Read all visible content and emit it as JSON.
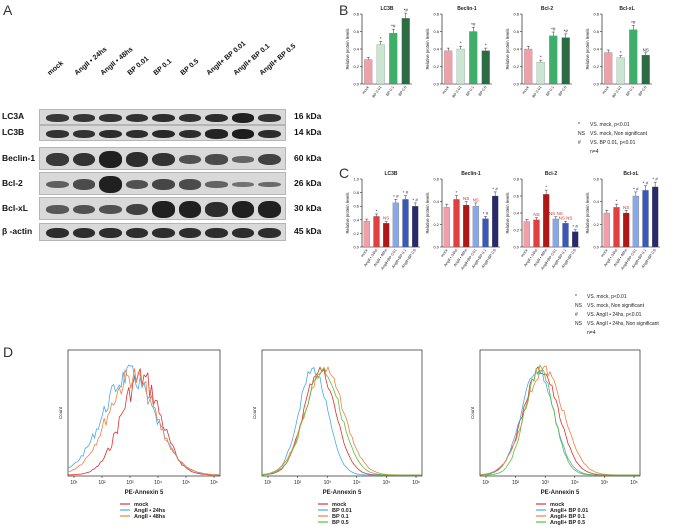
{
  "panel_a": {
    "letter": "A",
    "lanes": [
      "mock",
      "AngII • 24hs",
      "AngII • 48hs",
      "BP 0.01",
      "BP 0.1",
      "BP 0.5",
      "AngII+ BP 0.01",
      "AngII+ BP 0.1",
      "AngII+ BP 0.5"
    ],
    "rows": [
      {
        "label": "LC3A",
        "kda": "16 kDa",
        "intensity": [
          0.75,
          0.78,
          0.8,
          0.82,
          0.84,
          0.82,
          0.86,
          0.95,
          0.8
        ]
      },
      {
        "label": "LC3B",
        "kda": "14 kDa",
        "intensity": [
          0.8,
          0.8,
          0.86,
          0.84,
          0.88,
          0.85,
          0.92,
          0.98,
          0.85
        ]
      },
      {
        "label": "Beclin-1",
        "kda": "60 kDa",
        "intensity": [
          0.75,
          0.82,
          0.95,
          0.85,
          0.8,
          0.55,
          0.6,
          0.4,
          0.7
        ]
      },
      {
        "label": "Bcl-2",
        "kda": "26 kDa",
        "intensity": [
          0.45,
          0.6,
          0.95,
          0.55,
          0.65,
          0.6,
          0.4,
          0.3,
          0.35
        ]
      },
      {
        "label": "Bcl-xL",
        "kda": "30 kDa",
        "intensity": [
          0.5,
          0.55,
          0.55,
          0.7,
          0.95,
          0.95,
          0.85,
          0.95,
          0.95
        ]
      },
      {
        "label": "β -actin",
        "kda": "45 kDa",
        "intensity": [
          0.85,
          0.85,
          0.85,
          0.85,
          0.85,
          0.85,
          0.85,
          0.85,
          0.85
        ]
      }
    ]
  },
  "panel_b": {
    "letter": "B",
    "ylabel": "Relative protein levels",
    "legend": [
      {
        "sym": "*",
        "text": "VS. mock, p<0.01"
      },
      {
        "sym": "NS",
        "text": "VS. mock, Non significant"
      },
      {
        "sym": "#",
        "text": "VS. BP 0.01, p<0.01"
      },
      {
        "sym": "",
        "text": "n=4"
      }
    ]
  },
  "panel_c": {
    "letter": "C",
    "ylabel": "Relative protein levels",
    "legend": [
      {
        "sym": "*",
        "text": "VS. mock, p<0.01"
      },
      {
        "sym": "NS",
        "text": "VS. mock, Non significant"
      },
      {
        "sym": "#",
        "text": "VS. AngII • 24hs, p<0.01"
      },
      {
        "sym": "NS",
        "text": "VS. AngII • 24hs, Non significant"
      },
      {
        "sym": "",
        "text": "n=4"
      }
    ]
  },
  "panel_d": {
    "letter": "D",
    "xlabel": "PE-Annexin 5",
    "ylabel": "Count"
  },
  "chart_data": [
    {
      "type": "bar",
      "title": "LC3B",
      "categories": [
        "mock",
        "BP 0.01",
        "BP 0.1",
        "BP 0.5"
      ],
      "values": [
        0.28,
        0.45,
        0.58,
        0.75
      ],
      "ylim": [
        0,
        0.8
      ],
      "yticks": [
        "0.0",
        "0.2",
        "0.4",
        "0.6",
        "0.8"
      ],
      "marks": [
        "",
        "*",
        "*#",
        "*#"
      ],
      "colors": [
        "#f0a0a8",
        "#c9e6d0",
        "#3fae6a",
        "#2d6b45"
      ]
    },
    {
      "type": "bar",
      "title": "Beclin-1",
      "categories": [
        "mock",
        "BP 0.01",
        "BP 0.1",
        "BP 0.5"
      ],
      "values": [
        0.38,
        0.4,
        0.6,
        0.38
      ],
      "ylim": [
        0,
        0.8
      ],
      "yticks": [
        "0.0",
        "0.2",
        "0.4",
        "0.6",
        "0.8"
      ],
      "marks": [
        "",
        "*",
        "*#",
        "*"
      ],
      "colors": [
        "#f0a0a8",
        "#c9e6d0",
        "#3fae6a",
        "#2d6b45"
      ]
    },
    {
      "type": "bar",
      "title": "Bcl-2",
      "categories": [
        "mock",
        "BP 0.01",
        "BP 0.1",
        "BP 0.5"
      ],
      "values": [
        0.4,
        0.25,
        0.55,
        0.53
      ],
      "ylim": [
        0,
        0.8
      ],
      "yticks": [
        "0.0",
        "0.2",
        "0.4",
        "0.6",
        "0.8"
      ],
      "marks": [
        "",
        "*",
        "*#",
        "*#"
      ],
      "colors": [
        "#f0a0a8",
        "#c9e6d0",
        "#3fae6a",
        "#2d6b45"
      ]
    },
    {
      "type": "bar",
      "title": "Bcl-xL",
      "categories": [
        "mock",
        "BP 0.01",
        "BP 0.1",
        "BP 0.5"
      ],
      "values": [
        0.36,
        0.3,
        0.62,
        0.33
      ],
      "ylim": [
        0,
        0.8
      ],
      "yticks": [
        "0.0",
        "0.2",
        "0.4",
        "0.6",
        "0.8"
      ],
      "marks": [
        "",
        "*",
        "*#",
        "NS"
      ],
      "colors": [
        "#f0a0a8",
        "#c9e6d0",
        "#3fae6a",
        "#2d6b45"
      ]
    },
    {
      "type": "bar",
      "title": "LC3B",
      "categories": [
        "mock",
        "AngII • 24hs",
        "AngII • 48hs",
        "AngII+BP 0.01",
        "AngII+BP 0.1",
        "AngII+BP 0.5"
      ],
      "values": [
        0.38,
        0.45,
        0.35,
        0.65,
        0.7,
        0.6
      ],
      "ylim": [
        0,
        1.0
      ],
      "yticks": [
        "0.0",
        "0.2",
        "0.4",
        "0.6",
        "0.8",
        "1.0"
      ],
      "marks": [
        "",
        "*",
        "NS",
        "* #",
        "* #",
        "* #"
      ],
      "colors": [
        "#f0a0a8",
        "#e04040",
        "#b01818",
        "#8aa8e8",
        "#3a58b8",
        "#2a2a6a"
      ]
    },
    {
      "type": "bar",
      "title": "Beclin-1",
      "categories": [
        "mock",
        "AngII • 24hs",
        "AngII • 48hs",
        "AngII+BP 0.01",
        "AngII+BP 0.1",
        "AngII+BP 0.5"
      ],
      "values": [
        0.35,
        0.42,
        0.37,
        0.36,
        0.25,
        0.45
      ],
      "ylim": [
        0,
        0.6
      ],
      "yticks": [
        "0.0",
        "0.2",
        "0.4",
        "0.6"
      ],
      "marks": [
        "",
        "*",
        "NS",
        "NS",
        "* #",
        "* #"
      ],
      "colors": [
        "#f0a0a8",
        "#e04040",
        "#b01818",
        "#8aa8e8",
        "#3a58b8",
        "#2a2a6a"
      ]
    },
    {
      "type": "bar",
      "title": "Bcl-2",
      "categories": [
        "mock",
        "AngII • 24hs",
        "AngII • 48hs",
        "AngII+BP 0.01",
        "AngII+BP 0.1",
        "AngII+BP 0.5"
      ],
      "values": [
        0.3,
        0.32,
        0.62,
        0.33,
        0.28,
        0.18
      ],
      "ylim": [
        0,
        0.8
      ],
      "yticks": [
        "0.0",
        "0.2",
        "0.4",
        "0.6",
        "0.8"
      ],
      "marks": [
        "",
        "NS",
        "*",
        "NS NS",
        "NS NS",
        "* #"
      ],
      "colors": [
        "#f0a0a8",
        "#e04040",
        "#b01818",
        "#8aa8e8",
        "#3a58b8",
        "#2a2a6a"
      ]
    },
    {
      "type": "bar",
      "title": "Bcl-xL",
      "categories": [
        "mock",
        "AngII • 24hs",
        "AngII • 48hs",
        "AngII+BP 0.01",
        "AngII+BP 0.1",
        "AngII+BP 0.5"
      ],
      "values": [
        0.3,
        0.35,
        0.3,
        0.45,
        0.5,
        0.53
      ],
      "ylim": [
        0,
        0.6
      ],
      "yticks": [
        "0.0",
        "0.2",
        "0.4",
        "0.6"
      ],
      "marks": [
        "",
        "*",
        "NS",
        "* #",
        "* #",
        "* #"
      ],
      "colors": [
        "#f0a0a8",
        "#e04040",
        "#b01818",
        "#8aa8e8",
        "#3a58b8",
        "#2a2a6a"
      ]
    },
    {
      "type": "line",
      "title": "",
      "xlabel": "PE-Annexin 5",
      "ylabel": "Count",
      "xticks": [
        "10¹",
        "10²",
        "10³",
        "10⁴",
        "10⁵",
        "10⁶"
      ],
      "series": [
        {
          "name": "mock",
          "color": "#e03030"
        },
        {
          "name": "AngII • 24hs",
          "color": "#4aa8e8"
        },
        {
          "name": "AngII • 48hs",
          "color": "#f08040"
        }
      ]
    },
    {
      "type": "line",
      "title": "",
      "xlabel": "PE-Annexin 5",
      "ylabel": "Count",
      "xticks": [
        "10¹",
        "10²",
        "10³",
        "10⁴",
        "10⁵",
        "10⁶"
      ],
      "series": [
        {
          "name": "mock",
          "color": "#e03030"
        },
        {
          "name": "BP 0.01",
          "color": "#4aa8e8"
        },
        {
          "name": "BP 0.1",
          "color": "#f08040"
        },
        {
          "name": "BP 0.5",
          "color": "#5cbf3a"
        }
      ]
    },
    {
      "type": "line",
      "title": "",
      "xlabel": "PE-Annexin 5",
      "ylabel": "Count",
      "xticks": [
        "10¹",
        "10²",
        "10³",
        "10⁴",
        "10⁵",
        "10⁶"
      ],
      "series": [
        {
          "name": "mock",
          "color": "#e03030"
        },
        {
          "name": "AngII+ BP 0.01",
          "color": "#4aa8e8"
        },
        {
          "name": "AngII+ BP 0.1",
          "color": "#f08040"
        },
        {
          "name": "AngII+ BP 0.5",
          "color": "#5cbf3a"
        }
      ]
    }
  ]
}
